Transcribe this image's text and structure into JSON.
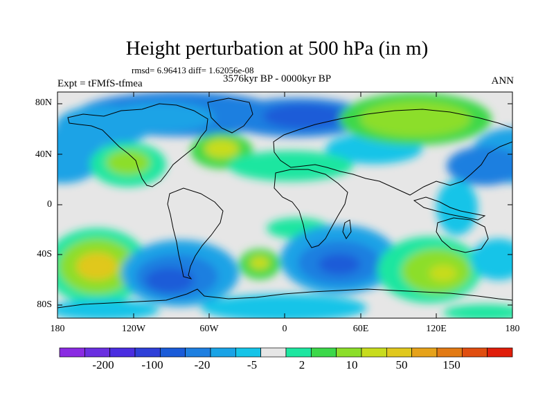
{
  "title": "Height perturbation at 500 hPa (in m)",
  "stats": "rmsd= 6.96413 diff= 1.62056e-08",
  "period": "3576kyr BP - 0000kyr BP",
  "experiment": "Expt = tFMfS-tfmea",
  "season": "ANN",
  "map": {
    "lon_range": [
      -180,
      180
    ],
    "lat_range": [
      -90,
      90
    ],
    "y_ticks": [
      "80N",
      "40N",
      "0",
      "40S",
      "80S"
    ],
    "x_ticks": [
      "180",
      "120W",
      "60W",
      "0",
      "60E",
      "120E",
      "180"
    ]
  },
  "colorbar": {
    "labels": [
      "-200",
      "-100",
      "-20",
      "-5",
      "2",
      "10",
      "50",
      "150"
    ],
    "colors": [
      "#8a2be2",
      "#6a2fe0",
      "#4a2de0",
      "#2e3fd8",
      "#1a5bd8",
      "#1e7fe0",
      "#1aa3e6",
      "#16c4e8",
      "#e6e6e6",
      "#1ee6a0",
      "#3cd84a",
      "#8cde2a",
      "#c8dc1e",
      "#e0c81e",
      "#e6a21a",
      "#e27a14",
      "#e04e10",
      "#e01e0a"
    ]
  }
}
